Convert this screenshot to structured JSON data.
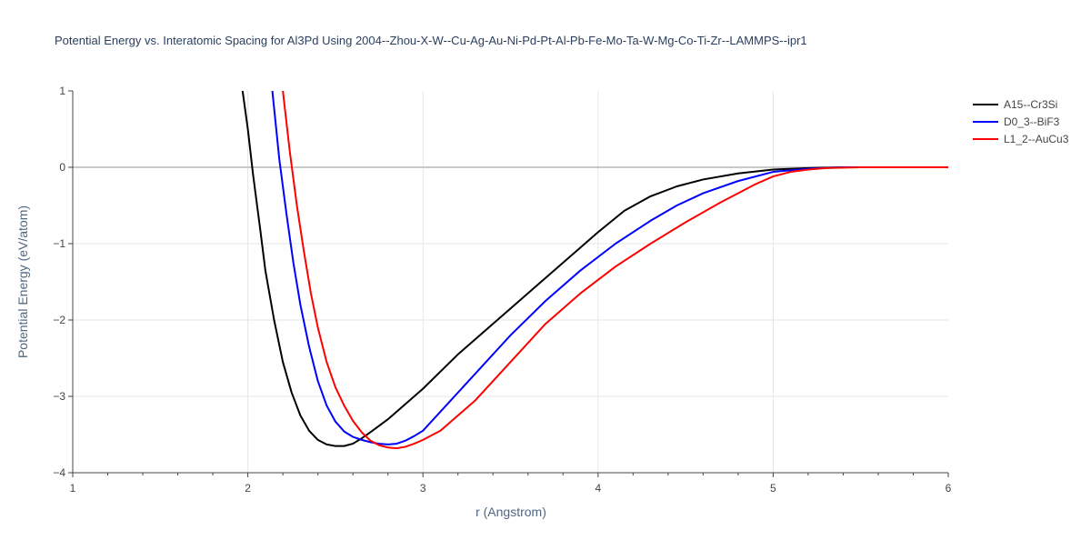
{
  "chart_data": {
    "type": "line",
    "title": "Potential Energy vs. Interatomic Spacing for Al3Pd Using 2004--Zhou-X-W--Cu-Ag-Au-Ni-Pd-Pt-Al-Pb-Fe-Mo-Ta-W-Mg-Co-Ti-Zr--LAMMPS--ipr1",
    "xlabel": "r (Angstrom)",
    "ylabel": "Potential Energy (eV/atom)",
    "xlim": [
      1,
      6
    ],
    "ylim": [
      -4,
      1
    ],
    "x_ticks": [
      1,
      2,
      3,
      4,
      5,
      6
    ],
    "x_tick_labels": [
      "1",
      "2",
      "3",
      "4",
      "5",
      "6"
    ],
    "y_ticks": [
      1,
      0,
      -1,
      -2,
      -3,
      -4
    ],
    "y_tick_labels": [
      "1",
      "0",
      "−1",
      "−2",
      "−3",
      "−4"
    ],
    "grid": true,
    "legend_position": "top-right",
    "series": [
      {
        "name": "A15--Cr3Si",
        "color": "#000000",
        "x": [
          1.97,
          2.0,
          2.03,
          2.07,
          2.1,
          2.15,
          2.2,
          2.25,
          2.3,
          2.35,
          2.4,
          2.45,
          2.5,
          2.55,
          2.6,
          2.65,
          2.7,
          2.8,
          3.0,
          3.2,
          3.5,
          3.7,
          4.0,
          4.15,
          4.3,
          4.45,
          4.6,
          4.8,
          5.0,
          5.2,
          5.4,
          5.6,
          6.0
        ],
        "y": [
          1.0,
          0.5,
          -0.1,
          -0.8,
          -1.35,
          -2.0,
          -2.55,
          -2.95,
          -3.25,
          -3.45,
          -3.57,
          -3.63,
          -3.65,
          -3.65,
          -3.62,
          -3.55,
          -3.47,
          -3.3,
          -2.9,
          -2.45,
          -1.85,
          -1.45,
          -0.85,
          -0.57,
          -0.38,
          -0.25,
          -0.16,
          -0.08,
          -0.03,
          -0.01,
          0.0,
          0.0,
          0.0
        ]
      },
      {
        "name": "D0_3--BiF3",
        "color": "#0000ff",
        "x": [
          2.14,
          2.18,
          2.22,
          2.26,
          2.3,
          2.35,
          2.4,
          2.45,
          2.5,
          2.55,
          2.6,
          2.65,
          2.7,
          2.75,
          2.8,
          2.85,
          2.9,
          2.95,
          3.0,
          3.1,
          3.3,
          3.5,
          3.7,
          3.9,
          4.1,
          4.3,
          4.45,
          4.6,
          4.8,
          5.0,
          5.2,
          5.4,
          5.6,
          6.0
        ],
        "y": [
          1.0,
          0.1,
          -0.6,
          -1.25,
          -1.8,
          -2.35,
          -2.8,
          -3.12,
          -3.33,
          -3.46,
          -3.53,
          -3.57,
          -3.6,
          -3.62,
          -3.63,
          -3.62,
          -3.58,
          -3.52,
          -3.45,
          -3.2,
          -2.7,
          -2.2,
          -1.75,
          -1.35,
          -1.0,
          -0.7,
          -0.5,
          -0.34,
          -0.18,
          -0.06,
          -0.02,
          0.0,
          0.0,
          0.0
        ]
      },
      {
        "name": "L1_2--AuCu3",
        "color": "#ff0000",
        "x": [
          2.2,
          2.24,
          2.28,
          2.32,
          2.36,
          2.4,
          2.45,
          2.5,
          2.55,
          2.6,
          2.65,
          2.7,
          2.75,
          2.8,
          2.85,
          2.9,
          2.95,
          3.0,
          3.1,
          3.3,
          3.5,
          3.7,
          3.9,
          4.1,
          4.3,
          4.5,
          4.7,
          4.9,
          5.0,
          5.1,
          5.2,
          5.3,
          5.5,
          6.0
        ],
        "y": [
          1.0,
          0.2,
          -0.5,
          -1.1,
          -1.65,
          -2.1,
          -2.55,
          -2.88,
          -3.12,
          -3.32,
          -3.47,
          -3.58,
          -3.64,
          -3.67,
          -3.68,
          -3.66,
          -3.62,
          -3.57,
          -3.45,
          -3.05,
          -2.55,
          -2.05,
          -1.65,
          -1.3,
          -1.0,
          -0.72,
          -0.46,
          -0.22,
          -0.12,
          -0.06,
          -0.03,
          -0.01,
          0.0,
          0.0
        ]
      }
    ]
  }
}
